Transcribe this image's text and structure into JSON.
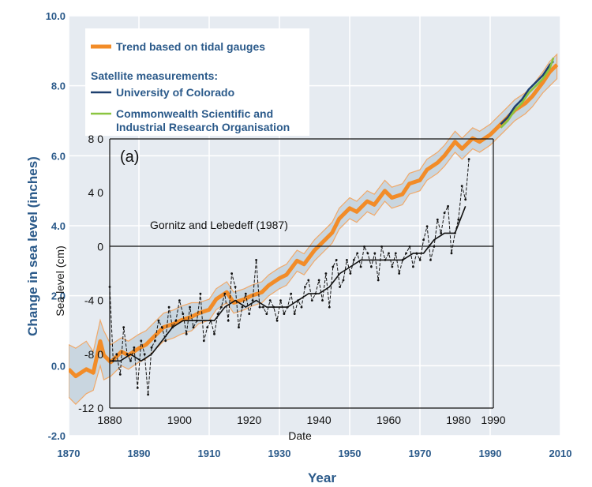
{
  "chart_data": [
    {
      "type": "line",
      "title": "",
      "xlabel": "Year",
      "ylabel": "Change in sea level (inches)",
      "xlim": [
        1870,
        2010
      ],
      "ylim": [
        -2.0,
        10.0
      ],
      "x_ticks": [
        "1870",
        "1890",
        "1910",
        "1930",
        "1950",
        "1970",
        "1990",
        "2010"
      ],
      "y_ticks": [
        "-2.0",
        "0.0",
        "2.0",
        "4.0",
        "6.0",
        "8.0",
        "10.0"
      ],
      "grid": true,
      "legend_position": "top-left",
      "legend": {
        "trend_label": "Trend based on tidal gauges",
        "satellite_heading": "Satellite measurements:",
        "colorado_label": "University of Colorado",
        "csiro_label_line1": "Commonwealth Scientific and",
        "csiro_label_line2": "Industrial Research Organisation"
      },
      "series": [
        {
          "name": "Trend based on tidal gauges",
          "color": "#f28c28",
          "uncertainty_color": "#c9d6e0",
          "x": [
            1870,
            1872,
            1875,
            1877,
            1879,
            1880,
            1882,
            1885,
            1887,
            1890,
            1892,
            1895,
            1897,
            1900,
            1902,
            1905,
            1907,
            1910,
            1912,
            1915,
            1917,
            1920,
            1922,
            1925,
            1927,
            1930,
            1932,
            1935,
            1937,
            1940,
            1942,
            1945,
            1947,
            1950,
            1952,
            1955,
            1957,
            1960,
            1962,
            1965,
            1967,
            1970,
            1972,
            1975,
            1977,
            1980,
            1982,
            1985,
            1987,
            1990,
            1992,
            1995,
            1997,
            2000,
            2002,
            2005,
            2007,
            2009
          ],
          "y": [
            -0.1,
            -0.3,
            -0.1,
            -0.2,
            0.7,
            0.3,
            0.1,
            0.4,
            0.3,
            0.5,
            0.6,
            0.9,
            1.1,
            1.2,
            1.3,
            1.4,
            1.5,
            1.6,
            1.9,
            2.1,
            1.8,
            1.9,
            2.0,
            2.1,
            2.3,
            2.5,
            2.6,
            3.0,
            2.9,
            3.3,
            3.5,
            3.8,
            4.2,
            4.5,
            4.4,
            4.7,
            4.6,
            5.0,
            4.8,
            4.9,
            5.2,
            5.3,
            5.6,
            5.8,
            6.0,
            6.4,
            6.2,
            6.5,
            6.4,
            6.6,
            6.8,
            7.1,
            7.3,
            7.5,
            7.7,
            8.1,
            8.4,
            8.6
          ],
          "lower": [
            -0.9,
            -1.1,
            -0.8,
            -0.7,
            0.0,
            -0.4,
            -0.3,
            0.0,
            -0.1,
            0.1,
            0.2,
            0.5,
            0.7,
            0.8,
            0.9,
            1.0,
            1.2,
            1.3,
            1.6,
            1.8,
            1.5,
            1.6,
            1.7,
            1.8,
            2.0,
            2.2,
            2.3,
            2.7,
            2.6,
            3.0,
            3.2,
            3.5,
            3.9,
            4.2,
            4.1,
            4.4,
            4.3,
            4.7,
            4.5,
            4.6,
            4.9,
            5.0,
            5.3,
            5.5,
            5.7,
            6.1,
            5.9,
            6.2,
            6.1,
            6.3,
            6.5,
            6.8,
            7.0,
            7.2,
            7.4,
            7.8,
            8.0,
            8.2
          ],
          "upper": [
            0.6,
            0.5,
            0.7,
            0.4,
            1.3,
            1.0,
            0.6,
            0.8,
            0.7,
            0.9,
            1.0,
            1.3,
            1.5,
            1.6,
            1.7,
            1.8,
            1.8,
            1.9,
            2.2,
            2.4,
            2.1,
            2.2,
            2.3,
            2.4,
            2.6,
            2.8,
            2.9,
            3.3,
            3.2,
            3.6,
            3.8,
            4.1,
            4.5,
            4.8,
            4.7,
            5.0,
            4.9,
            5.3,
            5.1,
            5.2,
            5.5,
            5.6,
            5.9,
            6.1,
            6.3,
            6.7,
            6.5,
            6.8,
            6.7,
            6.9,
            7.1,
            7.4,
            7.6,
            7.8,
            8.0,
            8.4,
            8.7,
            8.9
          ]
        },
        {
          "name": "University of Colorado",
          "color": "#1d3f6e",
          "x": [
            1993,
            1995,
            1997,
            1999,
            2001,
            2003,
            2005,
            2007,
            2008
          ],
          "y": [
            6.9,
            7.1,
            7.4,
            7.6,
            7.9,
            8.1,
            8.3,
            8.6,
            8.7
          ]
        },
        {
          "name": "Commonwealth Scientific and Industrial Research Organisation",
          "color": "#8bc540",
          "x": [
            1993,
            1995,
            1997,
            1999,
            2001,
            2003,
            2005,
            2007,
            2008
          ],
          "y": [
            6.8,
            7.0,
            7.3,
            7.5,
            7.8,
            8.0,
            8.2,
            8.5,
            8.8
          ]
        }
      ]
    },
    {
      "type": "line",
      "panel_label": "(a)",
      "title": "",
      "xlabel": "Date",
      "ylabel": "Sea level (cm)",
      "xlim": [
        1880,
        1990
      ],
      "ylim": [
        -120,
        80
      ],
      "x_ticks": [
        "1880",
        "1900",
        "1920",
        "1940",
        "1960",
        "1980",
        "1990"
      ],
      "y_ticks": [
        "8 0",
        "4 0",
        "0",
        "-4 0",
        "-8 0",
        "-12 0"
      ],
      "annotation": "Gornitz and Lebedeff (1987)",
      "series": [
        {
          "style": "dashed",
          "color": "#111111",
          "x": [
            1880,
            1881,
            1882,
            1883,
            1884,
            1885,
            1886,
            1887,
            1888,
            1889,
            1890,
            1891,
            1892,
            1893,
            1894,
            1895,
            1896,
            1897,
            1898,
            1899,
            1900,
            1901,
            1902,
            1903,
            1904,
            1905,
            1906,
            1907,
            1908,
            1909,
            1910,
            1911,
            1912,
            1913,
            1914,
            1915,
            1916,
            1917,
            1918,
            1919,
            1920,
            1921,
            1922,
            1923,
            1924,
            1925,
            1926,
            1927,
            1928,
            1929,
            1930,
            1931,
            1932,
            1933,
            1934,
            1935,
            1936,
            1937,
            1938,
            1939,
            1940,
            1941,
            1942,
            1943,
            1944,
            1945,
            1946,
            1947,
            1948,
            1949,
            1950,
            1951,
            1952,
            1953,
            1954,
            1955,
            1956,
            1957,
            1958,
            1959,
            1960,
            1961,
            1962,
            1963,
            1964,
            1965,
            1966,
            1967,
            1968,
            1969,
            1970,
            1971,
            1972,
            1973,
            1974,
            1975,
            1976,
            1977,
            1978,
            1979,
            1980,
            1981,
            1982,
            1983
          ],
          "y": [
            -30,
            -85,
            -80,
            -95,
            -60,
            -80,
            -85,
            -75,
            -105,
            -70,
            -80,
            -110,
            -75,
            -70,
            -55,
            -60,
            -70,
            -45,
            -60,
            -55,
            -40,
            -50,
            -65,
            -45,
            -60,
            -55,
            -35,
            -70,
            -60,
            -55,
            -65,
            -50,
            -45,
            -35,
            -55,
            -20,
            -30,
            -60,
            -45,
            -35,
            -50,
            -40,
            -10,
            -45,
            -45,
            -50,
            -40,
            -45,
            -55,
            -40,
            -50,
            -45,
            -35,
            -50,
            -40,
            -45,
            -30,
            -25,
            -40,
            -35,
            -25,
            -40,
            -20,
            -45,
            -15,
            -10,
            -30,
            -25,
            -10,
            -20,
            -10,
            -5,
            -15,
            0,
            -5,
            -15,
            -5,
            -25,
            0,
            -10,
            -5,
            -15,
            -5,
            -20,
            -10,
            -5,
            0,
            -15,
            -5,
            -10,
            5,
            15,
            -10,
            0,
            20,
            10,
            25,
            30,
            -5,
            10,
            20,
            45,
            35,
            65
          ]
        },
        {
          "style": "solid",
          "color": "#111111",
          "x": [
            1880,
            1883,
            1886,
            1889,
            1892,
            1895,
            1898,
            1901,
            1904,
            1907,
            1910,
            1913,
            1916,
            1919,
            1922,
            1925,
            1928,
            1931,
            1934,
            1937,
            1940,
            1943,
            1946,
            1949,
            1952,
            1955,
            1958,
            1961,
            1964,
            1967,
            1970,
            1973,
            1976,
            1979,
            1982
          ],
          "y": [
            -85,
            -85,
            -80,
            -85,
            -80,
            -70,
            -60,
            -55,
            -55,
            -55,
            -55,
            -45,
            -40,
            -45,
            -40,
            -45,
            -45,
            -45,
            -40,
            -35,
            -35,
            -30,
            -20,
            -15,
            -10,
            -10,
            -10,
            -10,
            -10,
            -5,
            -5,
            5,
            10,
            10,
            30
          ]
        }
      ]
    }
  ]
}
